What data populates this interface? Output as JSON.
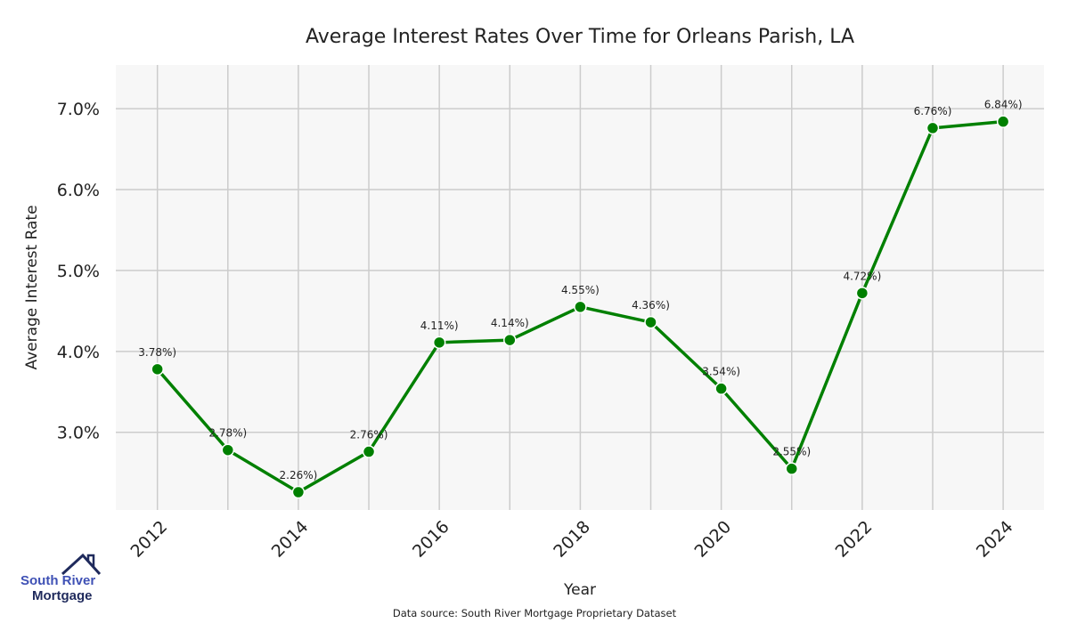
{
  "chart_data": {
    "type": "line",
    "title": "Average Interest Rates Over Time for Orleans Parish, LA",
    "xlabel": "Year",
    "ylabel": "Average Interest Rate",
    "x": [
      2012,
      2013,
      2014,
      2015,
      2016,
      2017,
      2018,
      2019,
      2020,
      2021,
      2022,
      2023,
      2024
    ],
    "values": [
      3.78,
      2.78,
      2.26,
      2.76,
      4.11,
      4.14,
      4.55,
      4.36,
      3.54,
      2.55,
      4.72,
      6.76,
      6.84
    ],
    "point_labels": [
      "3.78%)",
      "2.78%)",
      "2.26%)",
      "2.76%)",
      "4.11%)",
      "4.14%)",
      "4.55%)",
      "4.36%)",
      "3.54%)",
      "2.55%)",
      "4.72%)",
      "6.76%)",
      "6.84%)"
    ],
    "xticks": [
      2012,
      2014,
      2016,
      2018,
      2020,
      2022,
      2024
    ],
    "xtick_labels": [
      "2012",
      "2014",
      "2016",
      "2018",
      "2020",
      "2022",
      "2024"
    ],
    "yticks": [
      3,
      4,
      5,
      6,
      7
    ],
    "ytick_labels": [
      "3.0%",
      "4.0%",
      "5.0%",
      "6.0%",
      "7.0%"
    ],
    "xlim": [
      2011.41,
      2024.58
    ],
    "ylim": [
      2.04,
      7.54
    ],
    "grid": true,
    "line_color": "#008000",
    "background": "#f7f7f7"
  },
  "source": "Data source: South River Mortgage Proprietary Dataset",
  "logo": {
    "line1": "South River",
    "line2": "Mortgage"
  }
}
